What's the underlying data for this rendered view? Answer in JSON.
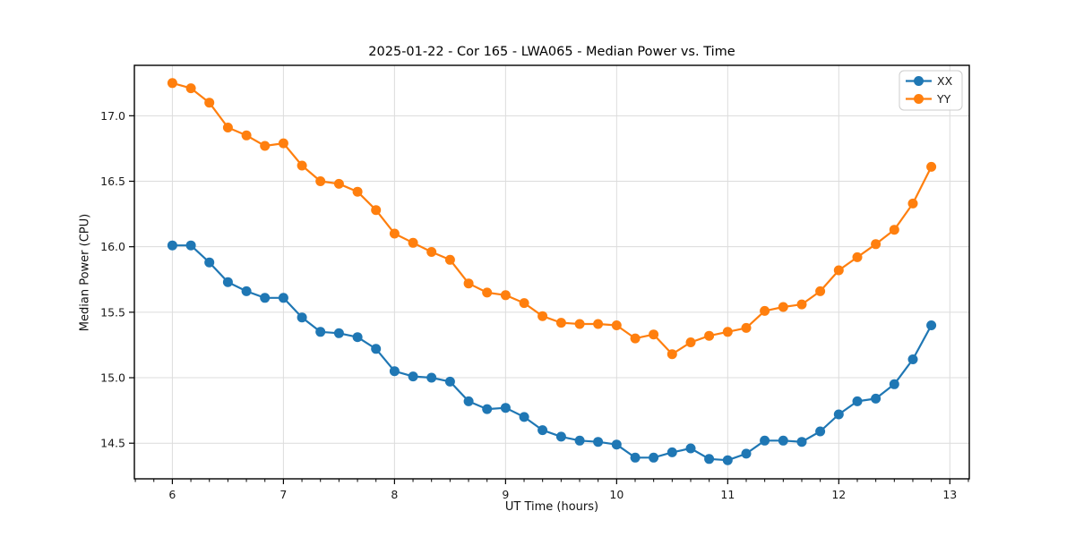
{
  "colors": {
    "background": "#ffffff",
    "grid": "#dcdcdc",
    "spine": "#000000",
    "tick_label": "#1a1a1a",
    "series_xx": "#1f77b4",
    "series_yy": "#ff7f0e",
    "legend_border": "#cccccc"
  },
  "chart_data": {
    "type": "line",
    "title": "2025-01-22 - Cor 165 - LWA065 - Median Power vs. Time",
    "xlabel": "UT Time (hours)",
    "ylabel": "Median Power (CPU)",
    "grid": true,
    "legend_position": "upper right",
    "marker": "circle",
    "xlim": [
      5.658,
      13.175
    ],
    "ylim": [
      14.228,
      17.385
    ],
    "x_ticks": [
      6,
      7,
      8,
      9,
      10,
      11,
      12,
      13
    ],
    "x_tick_labels": [
      "6",
      "7",
      "8",
      "9",
      "10",
      "11",
      "12",
      "13"
    ],
    "y_ticks": [
      14.5,
      15.0,
      15.5,
      16.0,
      16.5,
      17.0
    ],
    "y_tick_labels": [
      "14.5",
      "15.0",
      "15.5",
      "16.0",
      "16.5",
      "17.0"
    ],
    "x_minor_tick_interval": 0.1667,
    "x": [
      6.0,
      6.167,
      6.333,
      6.5,
      6.667,
      6.833,
      7.0,
      7.167,
      7.333,
      7.5,
      7.667,
      7.833,
      8.0,
      8.167,
      8.333,
      8.5,
      8.667,
      8.833,
      9.0,
      9.167,
      9.333,
      9.5,
      9.667,
      9.833,
      10.0,
      10.167,
      10.333,
      10.5,
      10.667,
      10.833,
      11.0,
      11.167,
      11.333,
      11.5,
      11.667,
      11.833,
      12.0,
      12.167,
      12.333,
      12.5,
      12.667,
      12.833
    ],
    "series": [
      {
        "name": "XX",
        "color": "#1f77b4",
        "values": [
          16.01,
          16.01,
          15.88,
          15.73,
          15.66,
          15.61,
          15.61,
          15.46,
          15.35,
          15.34,
          15.31,
          15.22,
          15.05,
          15.01,
          15.0,
          14.97,
          14.82,
          14.76,
          14.77,
          14.7,
          14.6,
          14.55,
          14.52,
          14.51,
          14.49,
          14.39,
          14.39,
          14.43,
          14.46,
          14.38,
          14.37,
          14.42,
          14.52,
          14.52,
          14.51,
          14.59,
          14.72,
          14.82,
          14.84,
          14.95,
          15.14,
          15.4
        ]
      },
      {
        "name": "YY",
        "color": "#ff7f0e",
        "values": [
          17.25,
          17.21,
          17.1,
          16.91,
          16.85,
          16.77,
          16.79,
          16.62,
          16.5,
          16.48,
          16.42,
          16.28,
          16.1,
          16.03,
          15.96,
          15.9,
          15.72,
          15.65,
          15.63,
          15.57,
          15.47,
          15.42,
          15.41,
          15.41,
          15.4,
          15.3,
          15.33,
          15.18,
          15.27,
          15.32,
          15.35,
          15.38,
          15.51,
          15.54,
          15.56,
          15.66,
          15.82,
          15.92,
          16.02,
          16.13,
          16.33,
          16.61
        ]
      }
    ]
  }
}
